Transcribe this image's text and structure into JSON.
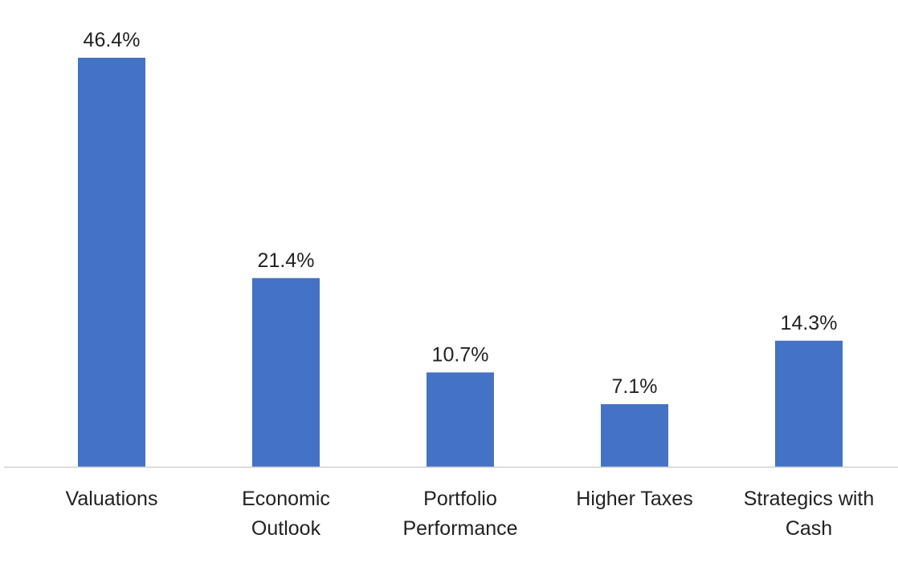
{
  "chart_data": {
    "type": "bar",
    "categories": [
      [
        "Valuations"
      ],
      [
        "Economic",
        "Outlook"
      ],
      [
        "Portfolio",
        "Performance"
      ],
      [
        "Higher Taxes"
      ],
      [
        "Strategics with",
        "Cash"
      ]
    ],
    "values": [
      46.4,
      21.4,
      10.7,
      7.1,
      14.3
    ],
    "data_labels": [
      "46.4%",
      "21.4%",
      "10.7%",
      "7.1%",
      "14.3%"
    ],
    "unit": "%",
    "ylim": [
      0,
      46.4
    ],
    "grid": false,
    "legend": "none",
    "colors": {
      "bar": "#4472C4",
      "axis": "#D0D0D0",
      "text": "#222222"
    }
  }
}
